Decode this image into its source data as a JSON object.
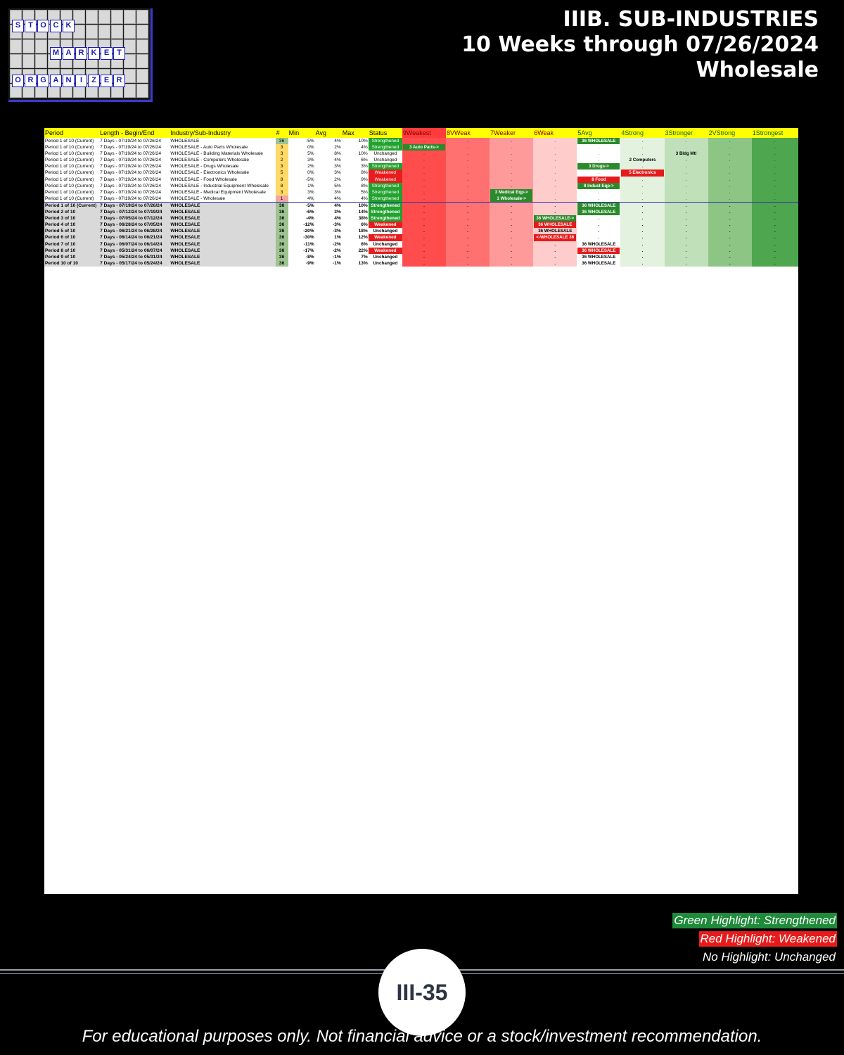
{
  "logo": {
    "words": [
      "STOCK",
      "MARKET",
      "ORGANIZER"
    ]
  },
  "title": {
    "line1": "IIIB. SUB-INDUSTRIES",
    "line2": "10 Weeks through 07/26/2024",
    "line3": "Wholesale"
  },
  "table": {
    "headers": [
      "Period",
      "Length - Begin/End",
      "Industry/Sub-Industry",
      "#",
      "Min",
      "Avg",
      "Max",
      "Status",
      "9Weakest",
      "8VWeak",
      "7Weaker",
      "6Weak",
      "5Avg",
      "4Strong",
      "3Stronger",
      "2VStrong",
      "1Strongest"
    ],
    "current_rows": [
      {
        "period": "Period 1 of 10 (Current)",
        "length": "7 Days - 07/19/24 to 07/26/24",
        "industry": "WHOLESALE",
        "n": "36",
        "min": "-5%",
        "avg": "4%",
        "max": "10%",
        "status": "Strengthened",
        "col": "5Avg",
        "cell": "36 WHOLESALE"
      },
      {
        "period": "Period 1 of 10 (Current)",
        "length": "7 Days - 07/19/24 to 07/26/24",
        "industry": "WHOLESALE - Auto Parts Wholesale",
        "n": "3",
        "min": "0%",
        "avg": "2%",
        "max": "4%",
        "status": "Strengthened",
        "col": "9Weakest",
        "cell": "3 Auto Parts->"
      },
      {
        "period": "Period 1 of 10 (Current)",
        "length": "7 Days - 07/19/24 to 07/26/24",
        "industry": "WHOLESALE - Building Materials Wholesale",
        "n": "3",
        "min": "5%",
        "avg": "8%",
        "max": "10%",
        "status": "Unchanged",
        "col": "3Stronger",
        "cell": "3 Bldg Mtl"
      },
      {
        "period": "Period 1 of 10 (Current)",
        "length": "7 Days - 07/19/24 to 07/26/24",
        "industry": "WHOLESALE - Computers Wholesale",
        "n": "2",
        "min": "3%",
        "avg": "4%",
        "max": "6%",
        "status": "Unchanged",
        "col": "4Strong",
        "cell": "2 Computers"
      },
      {
        "period": "Period 1 of 10 (Current)",
        "length": "7 Days - 07/19/24 to 07/26/24",
        "industry": "WHOLESALE - Drugs Wholesale",
        "n": "3",
        "min": "2%",
        "avg": "3%",
        "max": "3%",
        "status": "Strengthened",
        "col": "5Avg",
        "cell": "3 Drugs->"
      },
      {
        "period": "Period 1 of 10 (Current)",
        "length": "7 Days - 07/19/24 to 07/26/24",
        "industry": "WHOLESALE - Electronics Wholesale",
        "n": "5",
        "min": "0%",
        "avg": "3%",
        "max": "8%",
        "status": "Weakened",
        "col": "4Strong",
        "cell": "5 Electronics"
      },
      {
        "period": "Period 1 of 10 (Current)",
        "length": "7 Days - 07/19/24 to 07/26/24",
        "industry": "WHOLESALE - Food Wholesale",
        "n": "8",
        "min": "-5%",
        "avg": "2%",
        "max": "9%",
        "status": "Weakened",
        "col": "5Avg",
        "cell": "8 Food"
      },
      {
        "period": "Period 1 of 10 (Current)",
        "length": "7 Days - 07/19/24 to 07/26/24",
        "industry": "WHOLESALE - Industrial Equipment Wholesale",
        "n": "8",
        "min": "1%",
        "avg": "5%",
        "max": "8%",
        "status": "Strengthened",
        "col": "5Avg",
        "cell": "8 Indust Eqp->"
      },
      {
        "period": "Period 1 of 10 (Current)",
        "length": "7 Days - 07/19/24 to 07/26/24",
        "industry": "WHOLESALE - Medical Equipment Wholesale",
        "n": "3",
        "min": "3%",
        "avg": "3%",
        "max": "5%",
        "status": "Strengthened",
        "col": "7Weaker",
        "cell": "3 Medical Eqp->"
      },
      {
        "period": "Period 1 of 10 (Current)",
        "length": "7 Days - 07/19/24 to 07/26/24",
        "industry": "WHOLESALE - Wholesale",
        "n": "1",
        "min": "4%",
        "avg": "4%",
        "max": "4%",
        "status": "Strengthened",
        "col": "7Weaker",
        "cell": "1 Wholesale->"
      }
    ],
    "wholesale_rows": [
      {
        "period": "Period 1 of 10 (Current)",
        "length": "7 Days - 07/19/24 to 07/26/24",
        "min": "-5%",
        "avg": "4%",
        "max": "10%",
        "status": "Strengthened",
        "cell": "36 WHOLESALE"
      },
      {
        "period": "Period 2 of 10",
        "length": "7 Days - 07/12/24 to 07/19/24",
        "min": "-6%",
        "avg": "3%",
        "max": "14%",
        "status": "Strengthened",
        "cell": "36 WHOLESALE"
      },
      {
        "period": "Period 3 of 10",
        "length": "7 Days - 07/05/24 to 07/12/24",
        "min": "-4%",
        "avg": "4%",
        "max": "38%",
        "status": "Strengthened",
        "cell": "36 WHOLESALE->"
      },
      {
        "period": "Period 4 of 10",
        "length": "7 Days - 06/28/24 to 07/05/24",
        "min": "-12%",
        "avg": "-3%",
        "max": "6%",
        "status": "Weakened",
        "cell": "36 WHOLESALE"
      },
      {
        "period": "Period 5 of 10",
        "length": "7 Days - 06/21/24 to 06/28/24",
        "min": "-20%",
        "avg": "-3%",
        "max": "18%",
        "status": "Unchanged",
        "cell": "36 WHOLESALE"
      },
      {
        "period": "Period 6 of 10",
        "length": "7 Days - 06/14/24 to 06/21/24",
        "min": "-30%",
        "avg": "1%",
        "max": "12%",
        "status": "Weakened",
        "cell": "<-WHOLESALE 36"
      },
      {
        "period": "Period 7 of 10",
        "length": "7 Days - 06/07/24 to 06/14/24",
        "min": "-11%",
        "avg": "-2%",
        "max": "6%",
        "status": "Unchanged",
        "cell": "36 WHOLESALE"
      },
      {
        "period": "Period 8 of 10",
        "length": "7 Days - 05/31/24 to 06/07/24",
        "min": "-17%",
        "avg": "-2%",
        "max": "22%",
        "status": "Weakened",
        "cell": "36 WHOLESALE"
      },
      {
        "period": "Period 9 of 10",
        "length": "7 Days - 05/24/24 to 05/31/24",
        "min": "-8%",
        "avg": "-1%",
        "max": "7%",
        "status": "Unchanged",
        "cell": "36 WHOLESALE"
      },
      {
        "period": "Period 10 of 10",
        "length": "7 Days - 05/17/24 to 05/24/24",
        "min": "-9%",
        "avg": "-1%",
        "max": "13%",
        "status": "Unchanged",
        "cell": "36 WHOLESALE"
      }
    ]
  },
  "legend": {
    "green": "Green Highlight: Strengthened",
    "red": "Red Highlight: Weakened",
    "none": "No Highlight: Unchanged"
  },
  "page_number": "III-35",
  "footer": "For educational purposes only. Not financial advice or a stock/investment recommendation.",
  "colors": {
    "header": "#ffff00",
    "strengthened": "#22a22e",
    "weakened": "#e81c1c",
    "weak_gradient": "#ff4d4d",
    "strong_gradient": "#4ea64e"
  }
}
